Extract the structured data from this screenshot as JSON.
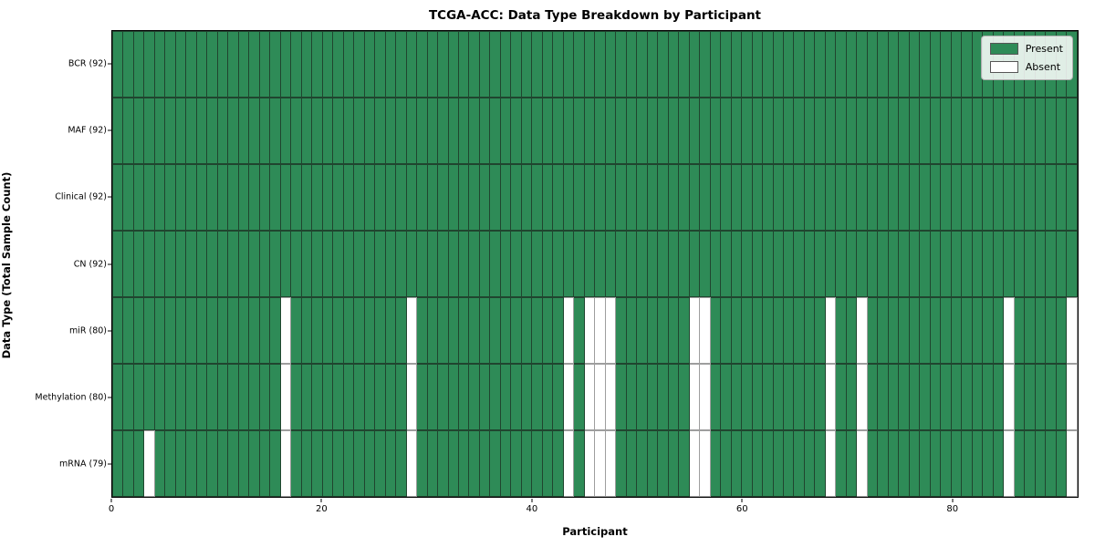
{
  "chart_data": {
    "type": "heatmap",
    "title": "TCGA-ACC: Data Type Breakdown by Participant",
    "xlabel": "Participant",
    "ylabel": "Data Type (Total Sample Count)",
    "n_participants": 92,
    "x_axis": {
      "ticks": [
        0,
        20,
        40,
        60,
        80
      ],
      "range": [
        0,
        92
      ]
    },
    "legend": [
      {
        "label": "Present",
        "color": "#2e8b57"
      },
      {
        "label": "Absent",
        "color": "#ffffff"
      }
    ],
    "legend_position": "upper right",
    "grid": false,
    "colors": {
      "present_fill": "#2e8b57",
      "present_edge": "#20452f",
      "absent_fill": "#ffffff",
      "absent_edge": "#9e9e9e",
      "frame": "#000000"
    },
    "rows": [
      {
        "label": "BCR (92)",
        "total_samples": 92,
        "absent_participants": []
      },
      {
        "label": "MAF (92)",
        "total_samples": 92,
        "absent_participants": []
      },
      {
        "label": "Clinical (92)",
        "total_samples": 92,
        "absent_participants": []
      },
      {
        "label": "CN (92)",
        "total_samples": 92,
        "absent_participants": []
      },
      {
        "label": "miR (80)",
        "total_samples": 80,
        "absent_participants": [
          16,
          28,
          43,
          45,
          46,
          47,
          55,
          56,
          68,
          71,
          85,
          91
        ]
      },
      {
        "label": "Methylation (80)",
        "total_samples": 80,
        "absent_participants": [
          16,
          28,
          43,
          45,
          46,
          47,
          55,
          56,
          68,
          71,
          85,
          91
        ]
      },
      {
        "label": "mRNA (79)",
        "total_samples": 79,
        "absent_participants": [
          3,
          16,
          28,
          43,
          45,
          46,
          47,
          55,
          56,
          68,
          71,
          85,
          91
        ]
      }
    ]
  }
}
